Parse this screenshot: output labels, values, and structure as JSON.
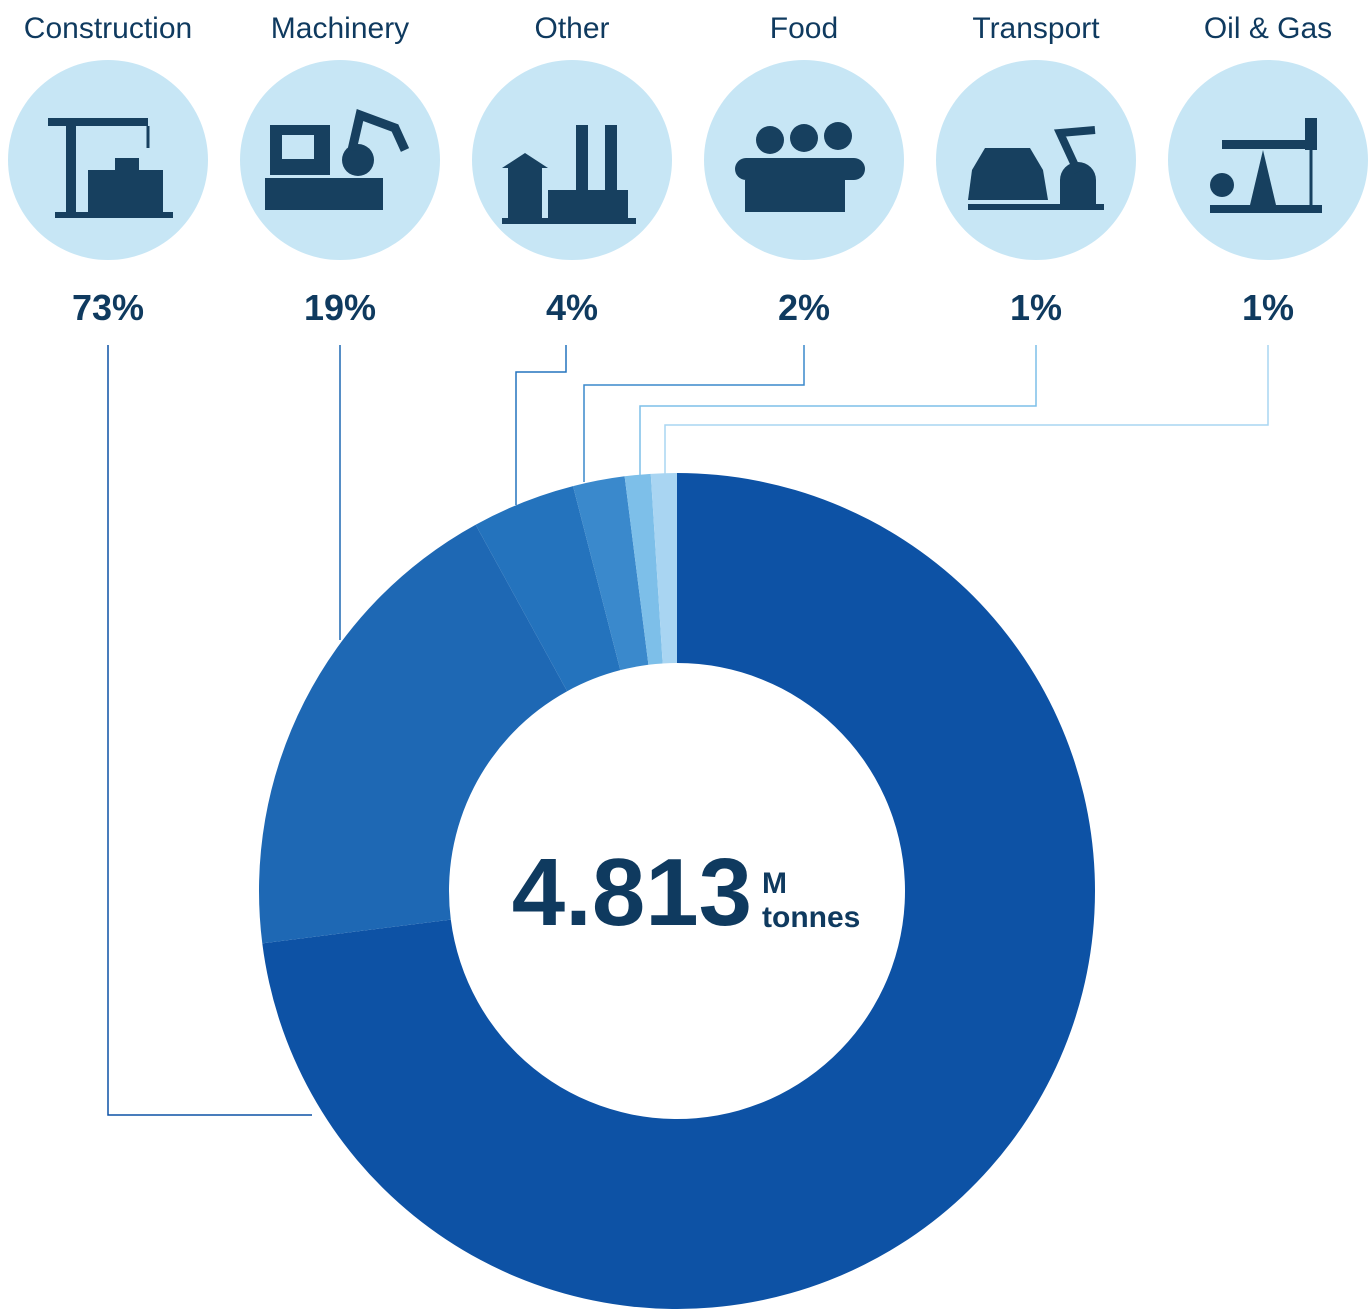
{
  "chart_data": {
    "type": "donut",
    "categories": [
      "Construction",
      "Machinery",
      "Other",
      "Food",
      "Transport",
      "Oil & Gas"
    ],
    "values": [
      73,
      19,
      4,
      2,
      1,
      1
    ],
    "value_labels": [
      "73%",
      "19%",
      "4%",
      "2%",
      "1%",
      "1%"
    ],
    "colors": [
      "#0d52a5",
      "#1e68b4",
      "#2473bd",
      "#3a89cc",
      "#7dbfe9",
      "#a9d5f2"
    ],
    "center_value": "4.813",
    "center_unit_top": "M",
    "center_unit_bottom": "tonnes"
  }
}
